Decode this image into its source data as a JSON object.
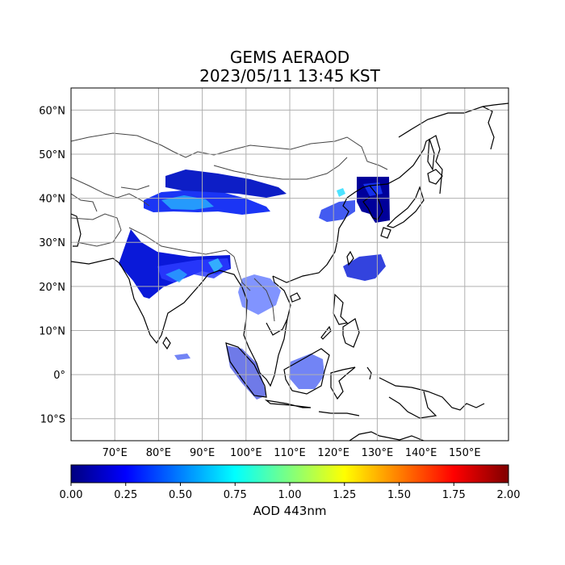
{
  "title": {
    "line1": "GEMS AERAOD",
    "line2": "2023/05/11 13:45 KST"
  },
  "map": {
    "lon_range": [
      60,
      160
    ],
    "lat_range": [
      -15,
      65
    ],
    "gridlines": true,
    "lon_ticks": [
      {
        "value": 70,
        "label": "70°E"
      },
      {
        "value": 80,
        "label": "80°E"
      },
      {
        "value": 90,
        "label": "90°E"
      },
      {
        "value": 100,
        "label": "100°E"
      },
      {
        "value": 110,
        "label": "110°E"
      },
      {
        "value": 120,
        "label": "120°E"
      },
      {
        "value": 130,
        "label": "130°E"
      },
      {
        "value": 140,
        "label": "140°E"
      },
      {
        "value": 150,
        "label": "150°E"
      }
    ],
    "lat_ticks": [
      {
        "value": 60,
        "label": "60°N"
      },
      {
        "value": 50,
        "label": "50°N"
      },
      {
        "value": 40,
        "label": "40°N"
      },
      {
        "value": 30,
        "label": "30°N"
      },
      {
        "value": 20,
        "label": "20°N"
      },
      {
        "value": 10,
        "label": "10°N"
      },
      {
        "value": 0,
        "label": "0°"
      },
      {
        "value": -10,
        "label": "10°S"
      }
    ]
  },
  "colorbar": {
    "label": "AOD 443nm",
    "range": [
      0.0,
      2.0
    ],
    "ticks": [
      "0.00",
      "0.25",
      "0.50",
      "0.75",
      "1.00",
      "1.25",
      "1.50",
      "1.75",
      "2.00"
    ],
    "colormap": "jet",
    "colors": [
      "#00007f",
      "#0000ff",
      "#007fff",
      "#00ffff",
      "#7fff7f",
      "#ffff00",
      "#ff7f00",
      "#ff0000",
      "#7f0000"
    ]
  },
  "aod_regions": [
    {
      "name": "india-north",
      "level": 0.08
    },
    {
      "name": "ganges-bangladesh",
      "level": 0.35
    },
    {
      "name": "taklamakan",
      "level": 0.45
    },
    {
      "name": "mongolia-band",
      "level": 0.12
    },
    {
      "name": "korea-box",
      "level": 0.06
    },
    {
      "name": "east-china",
      "level": 0.15
    },
    {
      "name": "taiwan-sea",
      "level": 0.1
    },
    {
      "name": "indochina",
      "level": 0.2
    },
    {
      "name": "borneo",
      "level": 0.1
    },
    {
      "name": "sumatra",
      "level": 0.12
    }
  ]
}
